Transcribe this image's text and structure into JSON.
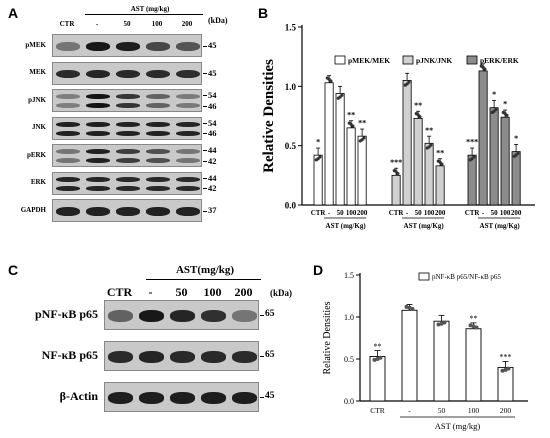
{
  "panelA": {
    "letter": "A",
    "treatment_label": "AST (mg/kg)",
    "kda_unit": "(kDa)",
    "lanes": [
      "CTR",
      "-",
      "50",
      "100",
      "200"
    ],
    "rows": [
      {
        "label": "pMEK",
        "kda": [
          "45"
        ],
        "intensity": [
          0.45,
          0.95,
          0.92,
          0.7,
          0.62
        ]
      },
      {
        "label": "MEK",
        "kda": [
          "45"
        ],
        "intensity": [
          0.85,
          0.88,
          0.86,
          0.85,
          0.84
        ]
      },
      {
        "label": "pJNK",
        "kda": [
          "54",
          "46"
        ],
        "intensity": [
          0.4,
          0.98,
          0.8,
          0.55,
          0.42
        ]
      },
      {
        "label": "JNK",
        "kda": [
          "54",
          "46"
        ],
        "intensity": [
          0.9,
          0.92,
          0.9,
          0.9,
          0.88
        ]
      },
      {
        "label": "pERK",
        "kda": [
          "44",
          "42"
        ],
        "intensity": [
          0.45,
          0.9,
          0.75,
          0.65,
          0.45
        ]
      },
      {
        "label": "ERK",
        "kda": [
          "44",
          "42"
        ],
        "intensity": [
          0.88,
          0.88,
          0.86,
          0.86,
          0.85
        ]
      },
      {
        "label": "GAPDH",
        "kda": [
          "37"
        ],
        "intensity": [
          0.9,
          0.9,
          0.9,
          0.9,
          0.9
        ]
      }
    ]
  },
  "panelC": {
    "letter": "C",
    "treatment_label": "AST(mg/kg)",
    "kda_unit": "(kDa)",
    "lanes": [
      "CTR",
      "-",
      "50",
      "100",
      "200"
    ],
    "rows": [
      {
        "label": "pNF-κB p65",
        "kda": [
          "65"
        ],
        "intensity": [
          0.55,
          0.95,
          0.88,
          0.82,
          0.45
        ]
      },
      {
        "label": "NF-κB p65",
        "kda": [
          "65"
        ],
        "intensity": [
          0.85,
          0.88,
          0.86,
          0.86,
          0.85
        ]
      },
      {
        "label": "β-Actin",
        "kda": [
          "45"
        ],
        "intensity": [
          0.92,
          0.92,
          0.92,
          0.92,
          0.92
        ]
      }
    ]
  },
  "chart_data": [
    {
      "panel": "B",
      "type": "bar",
      "ylabel": "Relative Densities",
      "ylim": [
        0,
        1.5
      ],
      "yticks": [
        "0.0",
        "0.5",
        "1.0",
        "1.5"
      ],
      "group_tick_labels": [
        "CTR",
        "-",
        "50",
        "100",
        "200"
      ],
      "group_xlabel": "AST (mg/Kg)",
      "legend_position": "top",
      "colors": {
        "pMEK/MEK": "#ffffff",
        "pJNK/JNK": "#d0d0d0",
        "pERK/ERK": "#8c8c8c"
      },
      "series": [
        {
          "name": "pMEK/MEK",
          "values": [
            0.42,
            1.03,
            0.94,
            0.65,
            0.58
          ],
          "stars": [
            "*",
            "",
            "",
            "**",
            "**"
          ]
        },
        {
          "name": "pJNK/JNK",
          "values": [
            0.25,
            1.05,
            0.73,
            0.52,
            0.33
          ],
          "stars": [
            "***",
            "",
            "**",
            "**",
            "**"
          ]
        },
        {
          "name": "pERK/ERK",
          "values": [
            0.42,
            1.13,
            0.82,
            0.74,
            0.45
          ],
          "stars": [
            "***",
            "",
            "*",
            "*",
            "*"
          ]
        }
      ]
    },
    {
      "panel": "D",
      "type": "bar",
      "ylabel": "Relative Densities",
      "xlabel": "AST (mg/kg)",
      "ylim": [
        0,
        1.5
      ],
      "yticks": [
        "0.0",
        "0.5",
        "1.0",
        "1.5"
      ],
      "categories": [
        "CTR",
        "-",
        "50",
        "100",
        "200"
      ],
      "legend_position": "top-right",
      "series": [
        {
          "name": "pNF-κB p65/NF-κB p65",
          "values": [
            0.53,
            1.08,
            0.95,
            0.86,
            0.4
          ],
          "stars": [
            "**",
            "",
            "",
            "**",
            "***"
          ]
        }
      ]
    }
  ]
}
